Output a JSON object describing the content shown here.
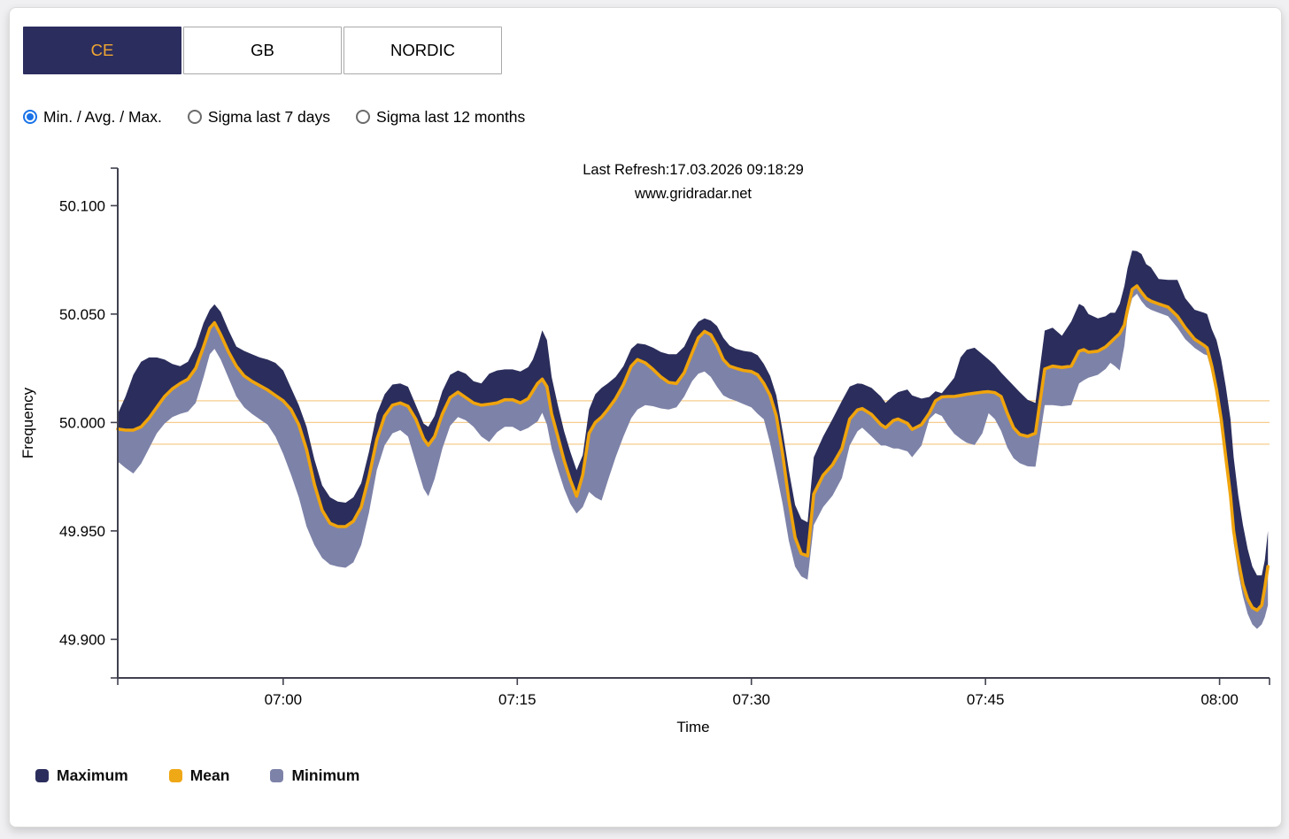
{
  "colors": {
    "page_bg": "#f0f0f2",
    "card_bg": "#ffffff",
    "navy": "#2b2d5e",
    "tab_active_text": "#f0a632",
    "radio_blue": "#1a73e8",
    "band_max": "#2b2e5c",
    "band_min": "#7d82a8",
    "mean_line": "#f0a40c",
    "ref_line": "#f6cd8e",
    "axis": "#40414f"
  },
  "tabs": [
    {
      "label": "CE",
      "active": true
    },
    {
      "label": "GB",
      "active": false
    },
    {
      "label": "NORDIC",
      "active": false
    }
  ],
  "radios": [
    {
      "label": "Min. / Avg. / Max.",
      "selected": true
    },
    {
      "label": "Sigma last 7 days",
      "selected": false
    },
    {
      "label": "Sigma last 12 months",
      "selected": false
    }
  ],
  "legend": [
    {
      "label": "Maximum",
      "color": "#2b2e5c"
    },
    {
      "label": "Mean",
      "color": "#efa816"
    },
    {
      "label": "Minimum",
      "color": "#7d82a8"
    }
  ],
  "chart_data": {
    "type": "area",
    "title": "Last Refresh:17.03.2026 09:18:29",
    "subtitle": "www.gridradar.net",
    "xlabel": "Time",
    "ylabel": "Frequency",
    "x_unit": "minutes after 07:00",
    "xlim": [
      -10.6,
      63.2
    ],
    "ylim": [
      49.8822,
      50.1173
    ],
    "grid": false,
    "legend_position": "bottom-left",
    "x_ticks": [
      {
        "t": 0,
        "label": "07:00"
      },
      {
        "t": 15,
        "label": "07:15"
      },
      {
        "t": 30,
        "label": "07:30"
      },
      {
        "t": 45,
        "label": "07:45"
      },
      {
        "t": 60,
        "label": "08:00"
      }
    ],
    "y_ticks": [
      {
        "v": 50.1,
        "label": "50.100"
      },
      {
        "v": 50.05,
        "label": "50.050"
      },
      {
        "v": 50.0,
        "label": "50.000"
      },
      {
        "v": 49.95,
        "label": "49.950"
      },
      {
        "v": 49.9,
        "label": "49.900"
      }
    ],
    "ref_lines": [
      50.01,
      50.0,
      49.99
    ],
    "t": [
      -10.6,
      -10.1,
      -9.6,
      -9.1,
      -8.6,
      -8.1,
      -7.6,
      -7.1,
      -6.6,
      -6.1,
      -5.6,
      -5.1,
      -4.7,
      -4.4,
      -4.0,
      -3.5,
      -3.0,
      -2.5,
      -2.0,
      -1.5,
      -1.0,
      -0.5,
      0.0,
      0.5,
      1.0,
      1.5,
      2.0,
      2.5,
      3.0,
      3.5,
      4.0,
      4.5,
      5.0,
      5.5,
      6.0,
      6.5,
      7.0,
      7.5,
      8.0,
      8.5,
      9.0,
      9.3,
      9.7,
      10.2,
      10.7,
      11.2,
      11.7,
      12.2,
      12.7,
      13.2,
      13.7,
      14.2,
      14.7,
      15.2,
      15.7,
      16.0,
      16.3,
      16.6,
      16.9,
      17.2,
      17.6,
      18.0,
      18.4,
      18.8,
      19.2,
      19.6,
      20.0,
      20.4,
      20.8,
      21.3,
      21.8,
      22.3,
      22.7,
      23.2,
      23.7,
      24.2,
      24.7,
      25.2,
      25.7,
      26.2,
      26.6,
      27.0,
      27.4,
      27.8,
      28.2,
      28.6,
      29.0,
      29.5,
      30.0,
      30.4,
      30.8,
      31.2,
      31.6,
      32.0,
      32.4,
      32.8,
      33.2,
      33.6,
      34.0,
      34.6,
      35.2,
      35.8,
      36.3,
      36.8,
      37.1,
      37.7,
      38.3,
      38.6,
      39.1,
      39.4,
      40.0,
      40.3,
      40.9,
      41.4,
      41.8,
      42.2,
      42.6,
      43.0,
      43.4,
      43.8,
      44.3,
      44.8,
      45.2,
      45.6,
      46.0,
      46.4,
      46.8,
      47.2,
      47.7,
      48.2,
      48.8,
      49.3,
      49.9,
      50.5,
      51.0,
      51.3,
      51.6,
      52.2,
      52.7,
      53.0,
      53.3,
      53.6,
      53.9,
      54.1,
      54.4,
      54.7,
      55.0,
      55.3,
      55.6,
      56.1,
      56.7,
      57.3,
      57.8,
      58.4,
      59.0,
      59.2,
      59.5,
      59.8,
      60.1,
      60.4,
      60.7,
      60.9,
      61.2,
      61.5,
      61.8,
      62.1,
      62.4,
      62.7,
      62.9,
      63.1
    ],
    "series": [
      {
        "name": "Maximum",
        "color": "#2b2e5c",
        "values": [
          50.004,
          50.012,
          50.022,
          50.028,
          50.03,
          50.03,
          50.029,
          50.027,
          50.026,
          50.028,
          50.035,
          50.046,
          50.052,
          50.0545,
          50.051,
          50.0425,
          50.035,
          50.033,
          50.0315,
          50.03,
          50.029,
          50.0275,
          50.024,
          50.016,
          50.008,
          49.998,
          49.983,
          49.971,
          49.9655,
          49.9635,
          49.963,
          49.9655,
          49.972,
          49.9865,
          50.004,
          50.013,
          50.0175,
          50.018,
          50.0165,
          50.008,
          49.9995,
          49.998,
          50.003,
          50.0145,
          50.022,
          50.024,
          50.0225,
          50.019,
          50.018,
          50.0225,
          50.024,
          50.0245,
          50.0245,
          50.0235,
          50.0255,
          50.029,
          50.035,
          50.0425,
          50.038,
          50.021,
          50.008,
          49.996,
          49.9865,
          49.978,
          49.985,
          50.006,
          50.013,
          50.016,
          50.018,
          50.021,
          50.026,
          50.034,
          50.0365,
          50.036,
          50.0345,
          50.0325,
          50.0315,
          50.0315,
          50.035,
          50.0425,
          50.0465,
          50.048,
          50.047,
          50.0445,
          50.039,
          50.0355,
          50.034,
          50.033,
          50.0325,
          50.031,
          50.027,
          50.0215,
          50.0125,
          49.996,
          49.978,
          49.962,
          49.9555,
          49.954,
          49.984,
          49.9936,
          50.0016,
          50.01,
          50.0166,
          50.018,
          50.0178,
          50.016,
          50.012,
          50.009,
          50.0124,
          50.014,
          50.0152,
          50.0125,
          50.011,
          50.0118,
          50.0144,
          50.0135,
          50.017,
          50.0207,
          50.03,
          50.0335,
          50.0345,
          50.0315,
          50.029,
          50.0265,
          50.023,
          50.02,
          50.017,
          50.014,
          50.0105,
          50.009,
          50.0424,
          50.0437,
          50.04,
          50.0466,
          50.0547,
          50.0535,
          50.05,
          50.048,
          50.049,
          50.0506,
          50.0506,
          50.0547,
          50.063,
          50.0711,
          50.0793,
          50.079,
          50.0777,
          50.073,
          50.0716,
          50.0662,
          50.0658,
          50.0658,
          50.0573,
          50.052,
          50.0506,
          50.05,
          50.043,
          50.038,
          50.029,
          50.0166,
          50.0016,
          49.9839,
          49.9663,
          49.9527,
          49.9417,
          49.9336,
          49.9295,
          49.9295,
          49.9365,
          49.95
        ]
      },
      {
        "name": "Mean",
        "color": "#f0a40c",
        "values": [
          49.997,
          49.9965,
          49.9965,
          49.998,
          50.002,
          50.007,
          50.012,
          50.0155,
          50.018,
          50.02,
          50.025,
          50.035,
          50.0435,
          50.046,
          50.0405,
          50.0325,
          50.026,
          50.0215,
          50.019,
          50.017,
          50.015,
          50.0125,
          50.01,
          50.006,
          49.999,
          49.9875,
          49.9715,
          49.9595,
          49.9535,
          49.952,
          49.952,
          49.9545,
          49.961,
          49.975,
          49.992,
          50.003,
          50.008,
          50.009,
          50.0075,
          50.0015,
          49.9925,
          49.9895,
          49.9935,
          50.004,
          50.0115,
          50.014,
          50.0115,
          50.009,
          50.008,
          50.0085,
          50.009,
          50.0105,
          50.0105,
          50.009,
          50.011,
          50.0145,
          50.018,
          50.02,
          50.0165,
          50.004,
          49.9935,
          49.9825,
          49.9735,
          49.966,
          49.976,
          49.995,
          50.0,
          50.0025,
          50.006,
          50.011,
          50.0175,
          50.026,
          50.029,
          50.0275,
          50.0245,
          50.021,
          50.0185,
          50.018,
          50.023,
          50.032,
          50.039,
          50.042,
          50.0405,
          50.0355,
          50.029,
          50.026,
          50.025,
          50.024,
          50.0235,
          50.022,
          50.018,
          50.0125,
          50.003,
          49.9855,
          49.9645,
          49.947,
          49.9395,
          49.9385,
          49.967,
          49.9757,
          49.9805,
          49.988,
          50.0016,
          50.0058,
          50.0064,
          50.0037,
          49.999,
          49.9976,
          50.0009,
          50.0016,
          49.9996,
          49.9968,
          49.999,
          50.0043,
          50.01,
          50.0118,
          50.012,
          50.012,
          50.0125,
          50.013,
          50.0135,
          50.014,
          50.0142,
          50.0138,
          50.012,
          50.0043,
          49.9976,
          49.9945,
          49.9936,
          49.995,
          50.0247,
          50.026,
          50.0254,
          50.026,
          50.0329,
          50.0336,
          50.0324,
          50.0329,
          50.0349,
          50.0369,
          50.039,
          50.041,
          50.045,
          50.052,
          50.0614,
          50.063,
          50.06,
          50.0573,
          50.056,
          50.0547,
          50.0532,
          50.049,
          50.0437,
          50.0384,
          50.0356,
          50.0344,
          50.026,
          50.0152,
          50.0016,
          49.9839,
          49.9663,
          49.9499,
          49.9365,
          49.9254,
          49.9186,
          49.9146,
          49.9134,
          49.9157,
          49.924,
          49.9336
        ]
      },
      {
        "name": "Minimum",
        "color": "#7d82a8",
        "values": [
          49.982,
          49.979,
          49.9765,
          49.981,
          49.988,
          49.995,
          49.9995,
          50.0025,
          50.004,
          50.005,
          50.009,
          50.021,
          50.0315,
          50.034,
          50.029,
          50.0205,
          50.012,
          50.007,
          50.004,
          50.0015,
          49.999,
          49.9935,
          49.9855,
          49.976,
          49.9655,
          49.952,
          49.9435,
          49.9375,
          49.9345,
          49.9335,
          49.933,
          49.9355,
          49.9435,
          49.9585,
          49.978,
          49.9895,
          49.995,
          49.9965,
          49.9935,
          49.9815,
          49.9695,
          49.966,
          49.974,
          49.988,
          49.9985,
          50.0025,
          50.001,
          49.998,
          49.9935,
          49.991,
          49.9955,
          49.998,
          49.998,
          49.996,
          49.9975,
          49.999,
          50.0005,
          50.0045,
          49.999,
          49.988,
          49.9785,
          49.9695,
          49.9625,
          49.958,
          49.961,
          49.968,
          49.9655,
          49.964,
          49.973,
          49.984,
          49.9935,
          50.002,
          50.006,
          50.008,
          50.0075,
          50.0065,
          50.006,
          50.007,
          50.012,
          50.019,
          50.0225,
          50.0235,
          50.021,
          50.0165,
          50.0125,
          50.011,
          50.01,
          50.0085,
          50.007,
          50.004,
          50.0015,
          49.9905,
          49.977,
          49.9625,
          49.9455,
          49.9335,
          49.929,
          49.9275,
          49.9527,
          49.961,
          49.9663,
          49.9744,
          49.9894,
          49.996,
          49.9976,
          49.9936,
          49.9894,
          49.9894,
          49.988,
          49.988,
          49.9867,
          49.984,
          49.9894,
          50.0016,
          50.0043,
          50.003,
          49.9985,
          49.9948,
          49.9925,
          49.9907,
          49.9896,
          49.995,
          50.0043,
          50.0016,
          49.9962,
          49.9885,
          49.9835,
          49.9812,
          49.9798,
          49.9796,
          50.008,
          50.008,
          50.0075,
          50.008,
          50.018,
          50.0195,
          50.0207,
          50.022,
          50.0247,
          50.0275,
          50.026,
          50.024,
          50.0356,
          50.049,
          50.0573,
          50.0594,
          50.056,
          50.0533,
          50.052,
          50.0506,
          50.049,
          50.0437,
          50.0384,
          50.0344,
          50.0315,
          50.031,
          50.0234,
          50.0124,
          49.9976,
          49.9796,
          49.961,
          49.9446,
          49.9309,
          49.9198,
          49.9118,
          49.9069,
          49.9048,
          49.9069,
          49.9103,
          49.9158
        ]
      }
    ]
  }
}
